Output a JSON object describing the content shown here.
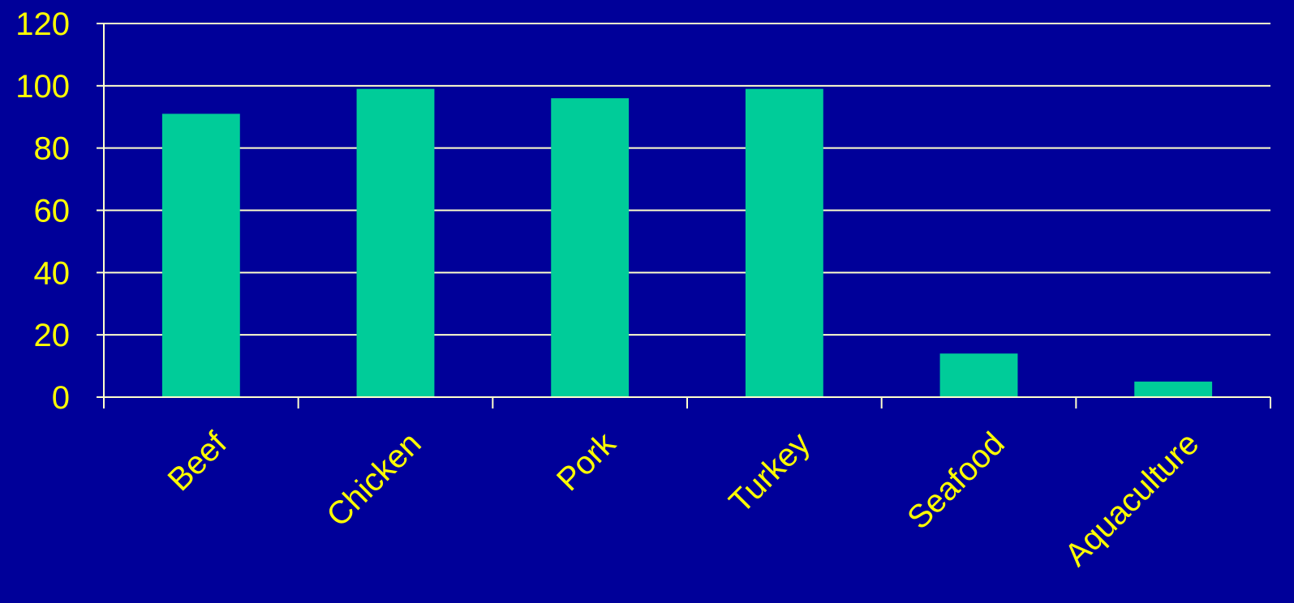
{
  "chart_data": {
    "type": "bar",
    "categories": [
      "Beef",
      "Chicken",
      "Pork",
      "Turkey",
      "Seafood",
      "Aquaculture"
    ],
    "values": [
      91,
      99,
      96,
      99,
      14,
      5
    ],
    "title": "",
    "xlabel": "",
    "ylabel": "",
    "ylim": [
      0,
      120
    ],
    "yticks": [
      0,
      20,
      40,
      60,
      80,
      100,
      120
    ],
    "grid": true,
    "legend": "none"
  },
  "colors": {
    "background": "#000099",
    "bar": "#00CC99",
    "text": "#FFFF00",
    "axis": "#FFFFCC",
    "grid": "#FFFFCC"
  }
}
